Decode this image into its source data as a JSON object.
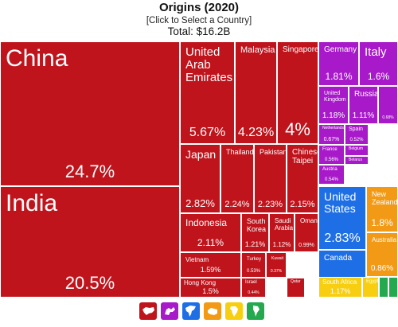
{
  "header": {
    "title": "Origins (2020)",
    "subtitle": "[Click to Select a Country]",
    "total": "Total: $16.2B"
  },
  "colors": {
    "asia": "#c0141c",
    "europe": "#a719c9",
    "north_america": "#1e6fe6",
    "oceania": "#f29a15",
    "africa": "#f7cf10",
    "south_america": "#25a94f"
  },
  "legend": [
    {
      "name": "asia-icon",
      "color": "#c0141c"
    },
    {
      "name": "europe-icon",
      "color": "#a719c9"
    },
    {
      "name": "north-america-icon",
      "color": "#1e6fe6"
    },
    {
      "name": "oceania-icon",
      "color": "#f29a15"
    },
    {
      "name": "africa-icon",
      "color": "#f7cf10"
    },
    {
      "name": "south-america-icon",
      "color": "#25a94f"
    }
  ],
  "chart_data": {
    "type": "treemap",
    "title": "Origins (2020)",
    "total": "Total: $16.2B",
    "tiles": [
      {
        "label": "China",
        "value": "24.7%",
        "region": "asia"
      },
      {
        "label": "India",
        "value": "20.5%",
        "region": "asia"
      },
      {
        "label": "United Arab Emirates",
        "value": "5.67%",
        "region": "asia"
      },
      {
        "label": "Malaysia",
        "value": "4.23%",
        "region": "asia"
      },
      {
        "label": "Singapore",
        "value": "4%",
        "region": "asia"
      },
      {
        "label": "Japan",
        "value": "2.82%",
        "region": "asia"
      },
      {
        "label": "Thailand",
        "value": "2.24%",
        "region": "asia"
      },
      {
        "label": "Pakistan",
        "value": "2.23%",
        "region": "asia"
      },
      {
        "label": "Chinese Taipei",
        "value": "2.15%",
        "region": "asia"
      },
      {
        "label": "Indonesia",
        "value": "2.11%",
        "region": "asia"
      },
      {
        "label": "South Korea",
        "value": "1.21%",
        "region": "asia"
      },
      {
        "label": "Saudi Arabia",
        "value": "1.12%",
        "region": "asia"
      },
      {
        "label": "Oman",
        "value": "0.99%",
        "region": "asia"
      },
      {
        "label": "Vietnam",
        "value": "1.59%",
        "region": "asia"
      },
      {
        "label": "Turkey",
        "value": "0.53%",
        "region": "asia"
      },
      {
        "label": "Kuwait",
        "value": "0.37%",
        "region": "asia"
      },
      {
        "label": "Hong Kong",
        "value": "1.5%",
        "region": "asia"
      },
      {
        "label": "Israel",
        "value": "0.44%",
        "region": "asia"
      },
      {
        "label": "Qatar",
        "value": "",
        "region": "asia"
      },
      {
        "label": "Germany",
        "value": "1.81%",
        "region": "europe"
      },
      {
        "label": "Italy",
        "value": "1.6%",
        "region": "europe"
      },
      {
        "label": "United Kingdom",
        "value": "1.18%",
        "region": "europe"
      },
      {
        "label": "Russia",
        "value": "1.11%",
        "region": "europe"
      },
      {
        "label": "",
        "value": "0.68%",
        "region": "europe"
      },
      {
        "label": "Netherlands",
        "value": "0.67%",
        "region": "europe"
      },
      {
        "label": "Spain",
        "value": "0.52%",
        "region": "europe"
      },
      {
        "label": "France",
        "value": "0.56%",
        "region": "europe"
      },
      {
        "label": "Belgium",
        "value": "",
        "region": "europe"
      },
      {
        "label": "Belarus",
        "value": "",
        "region": "europe"
      },
      {
        "label": "Austria",
        "value": "0.54%",
        "region": "europe"
      },
      {
        "label": "United States",
        "value": "2.83%",
        "region": "north_america"
      },
      {
        "label": "Canada",
        "value": "1.17%",
        "region": "north_america"
      },
      {
        "label": "New Zealand",
        "value": "1.8%",
        "region": "oceania"
      },
      {
        "label": "Australia",
        "value": "0.86%",
        "region": "oceania"
      },
      {
        "label": "South Africa",
        "value": "1.17%",
        "region": "africa"
      },
      {
        "label": "Egypt",
        "value": "",
        "region": "africa"
      },
      {
        "label": "",
        "value": "",
        "region": "south_america"
      },
      {
        "label": "",
        "value": "",
        "region": "south_america"
      }
    ]
  }
}
